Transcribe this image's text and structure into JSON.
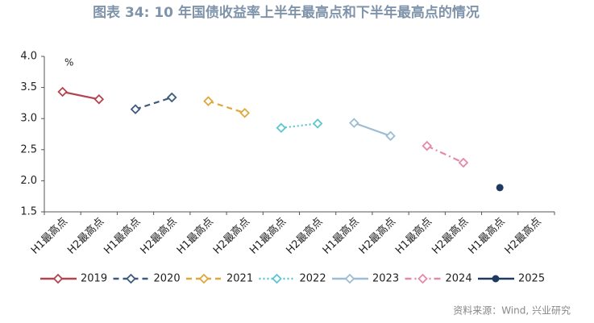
{
  "chart_data": {
    "type": "line",
    "title": "图表 34: 10 年国债收益率上半年最高点和下半年最高点的情况",
    "y_unit_label": "%",
    "source": "资料来源：Wind, 兴业研究",
    "categories": [
      "H1最高点",
      "H2最高点",
      "H1最高点",
      "H2最高点",
      "H1最高点",
      "H2最高点",
      "H1最高点",
      "H2最高点",
      "H1最高点",
      "H2最高点",
      "H1最高点",
      "H2最高点",
      "H1最高点",
      "H2最高点"
    ],
    "ylim": [
      1.5,
      4.0
    ],
    "yticks": [
      1.5,
      {
        "value": 2.0,
        "label": "2.0"
      },
      2.5,
      {
        "value": 3.0,
        "label": "3.0"
      },
      3.5,
      {
        "value": 4.0,
        "label": "4.0"
      }
    ],
    "grid": false,
    "legend": "bottom",
    "series": [
      {
        "name": "2019",
        "color": "#b5424f",
        "linestyle": "solid",
        "marker": "diamond",
        "values": [
          3.43,
          3.31,
          null,
          null,
          null,
          null,
          null,
          null,
          null,
          null,
          null,
          null,
          null,
          null
        ]
      },
      {
        "name": "2020",
        "color": "#3d5a7a",
        "linestyle": "dashed",
        "marker": "diamond",
        "values": [
          null,
          null,
          3.15,
          3.34,
          null,
          null,
          null,
          null,
          null,
          null,
          null,
          null,
          null,
          null
        ]
      },
      {
        "name": "2021",
        "color": "#e0a83a",
        "linestyle": "dashed",
        "marker": "diamond",
        "values": [
          null,
          null,
          null,
          null,
          3.28,
          3.09,
          null,
          null,
          null,
          null,
          null,
          null,
          null,
          null
        ]
      },
      {
        "name": "2022",
        "color": "#5cc5cf",
        "linestyle": "dotted",
        "marker": "diamond",
        "values": [
          null,
          null,
          null,
          null,
          null,
          null,
          2.85,
          2.92,
          null,
          null,
          null,
          null,
          null,
          null
        ]
      },
      {
        "name": "2023",
        "color": "#9dbdd4",
        "linestyle": "solid",
        "marker": "diamond",
        "values": [
          null,
          null,
          null,
          null,
          null,
          null,
          null,
          null,
          2.93,
          2.72,
          null,
          null,
          null,
          null
        ]
      },
      {
        "name": "2024",
        "color": "#e589a8",
        "linestyle": "dashdot",
        "marker": "diamond",
        "values": [
          null,
          null,
          null,
          null,
          null,
          null,
          null,
          null,
          null,
          null,
          2.56,
          2.29,
          null,
          null
        ]
      },
      {
        "name": "2025",
        "color": "#1f3a5f",
        "linestyle": "solid",
        "marker": "circle",
        "values": [
          null,
          null,
          null,
          null,
          null,
          null,
          null,
          null,
          null,
          null,
          null,
          null,
          1.89,
          null
        ]
      }
    ]
  }
}
